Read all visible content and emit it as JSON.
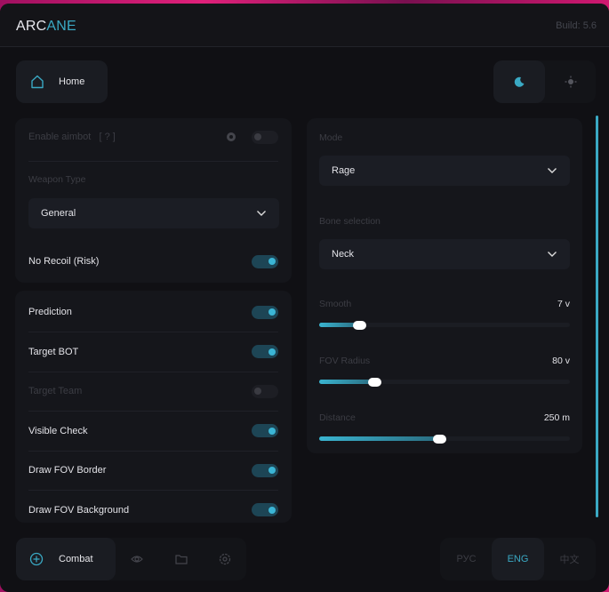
{
  "header": {
    "logo_a": "ARC",
    "logo_b": "ANE",
    "build": "Build: 5.6"
  },
  "top_nav": {
    "home": "Home"
  },
  "left": {
    "enable_aimbot": "Enable aimbot",
    "help": "[ ? ]",
    "enable_aimbot_on": false,
    "weapon_type_label": "Weapon Type",
    "weapon_type": "General",
    "no_recoil": "No Recoil (Risk)",
    "no_recoil_on": true,
    "toggles": [
      {
        "label": "Prediction",
        "on": true
      },
      {
        "label": "Target BOT",
        "on": true
      },
      {
        "label": "Target Team",
        "on": false
      },
      {
        "label": "Visible Check",
        "on": true
      },
      {
        "label": "Draw FOV Border",
        "on": true
      },
      {
        "label": "Draw FOV Background",
        "on": true
      }
    ]
  },
  "right": {
    "mode_label": "Mode",
    "mode": "Rage",
    "bone_label": "Bone selection",
    "bone": "Neck",
    "sliders": [
      {
        "label": "Smooth",
        "value": "7 v",
        "fraction": 0.16
      },
      {
        "label": "FOV Radius",
        "value": "80 v",
        "fraction": 0.22
      },
      {
        "label": "Distance",
        "value": "250 m",
        "fraction": 0.48
      }
    ]
  },
  "bottom_nav": {
    "combat": "Combat"
  },
  "languages": [
    "РУС",
    "ENG",
    "中文"
  ],
  "accent": "#3aa9c4"
}
